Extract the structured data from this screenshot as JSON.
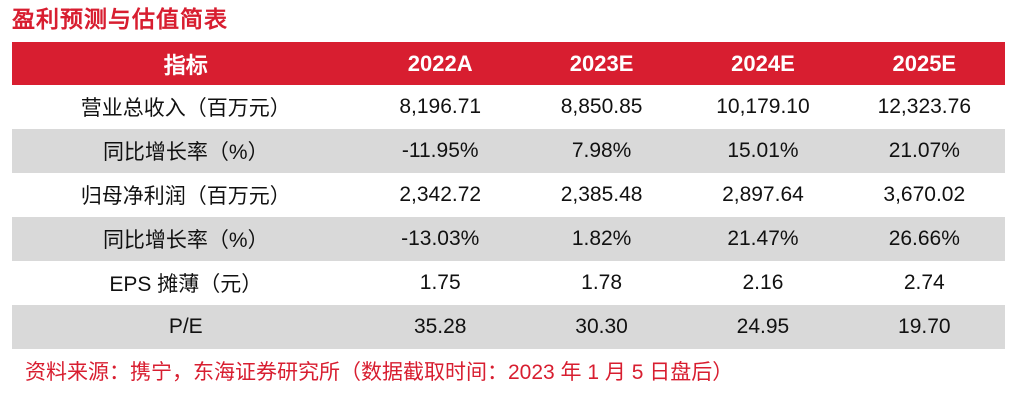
{
  "page": {
    "title": "盈利预测与估值简表",
    "source_note": "资料来源：携宁，东海证券研究所（数据截取时间：2023 年 1 月 5 日盘后）"
  },
  "colors": {
    "accent_red": "#d81e30",
    "alt_row_gray": "#d9d9d9",
    "header_text": "#ffffff",
    "body_text": "#111111"
  },
  "table": {
    "columns": [
      "指标",
      "2022A",
      "2023E",
      "2024E",
      "2025E"
    ],
    "rows": [
      {
        "label": "营业总收入（百万元）",
        "values": [
          "8,196.71",
          "8,850.85",
          "10,179.10",
          "12,323.76"
        ]
      },
      {
        "label": "同比增长率（%）",
        "values": [
          "-11.95%",
          "7.98%",
          "15.01%",
          "21.07%"
        ]
      },
      {
        "label": "归母净利润（百万元）",
        "values": [
          "2,342.72",
          "2,385.48",
          "2,897.64",
          "3,670.02"
        ]
      },
      {
        "label": "同比增长率（%）",
        "values": [
          "-13.03%",
          "1.82%",
          "21.47%",
          "26.66%"
        ]
      },
      {
        "label": "EPS 摊薄（元）",
        "values": [
          "1.75",
          "1.78",
          "2.16",
          "2.74"
        ]
      },
      {
        "label": "P/E",
        "values": [
          "35.28",
          "30.30",
          "24.95",
          "19.70"
        ]
      }
    ]
  },
  "chart_data": {
    "type": "table",
    "title": "盈利预测与估值简表",
    "columns": [
      "指标",
      "2022A",
      "2023E",
      "2024E",
      "2025E"
    ],
    "rows": [
      [
        "营业总收入（百万元）",
        "8,196.71",
        "8,850.85",
        "10,179.10",
        "12,323.76"
      ],
      [
        "同比增长率（%）",
        "-11.95%",
        "7.98%",
        "15.01%",
        "21.07%"
      ],
      [
        "归母净利润（百万元）",
        "2,342.72",
        "2,385.48",
        "2,897.64",
        "3,670.02"
      ],
      [
        "同比增长率（%）",
        "-13.03%",
        "1.82%",
        "21.47%",
        "26.66%"
      ],
      [
        "EPS 摊薄（元）",
        "1.75",
        "1.78",
        "2.16",
        "2.74"
      ],
      [
        "P/E",
        "35.28",
        "30.30",
        "24.95",
        "19.70"
      ]
    ],
    "source": "资料来源：携宁，东海证券研究所（数据截取时间：2023 年 1 月 5 日盘后）"
  }
}
